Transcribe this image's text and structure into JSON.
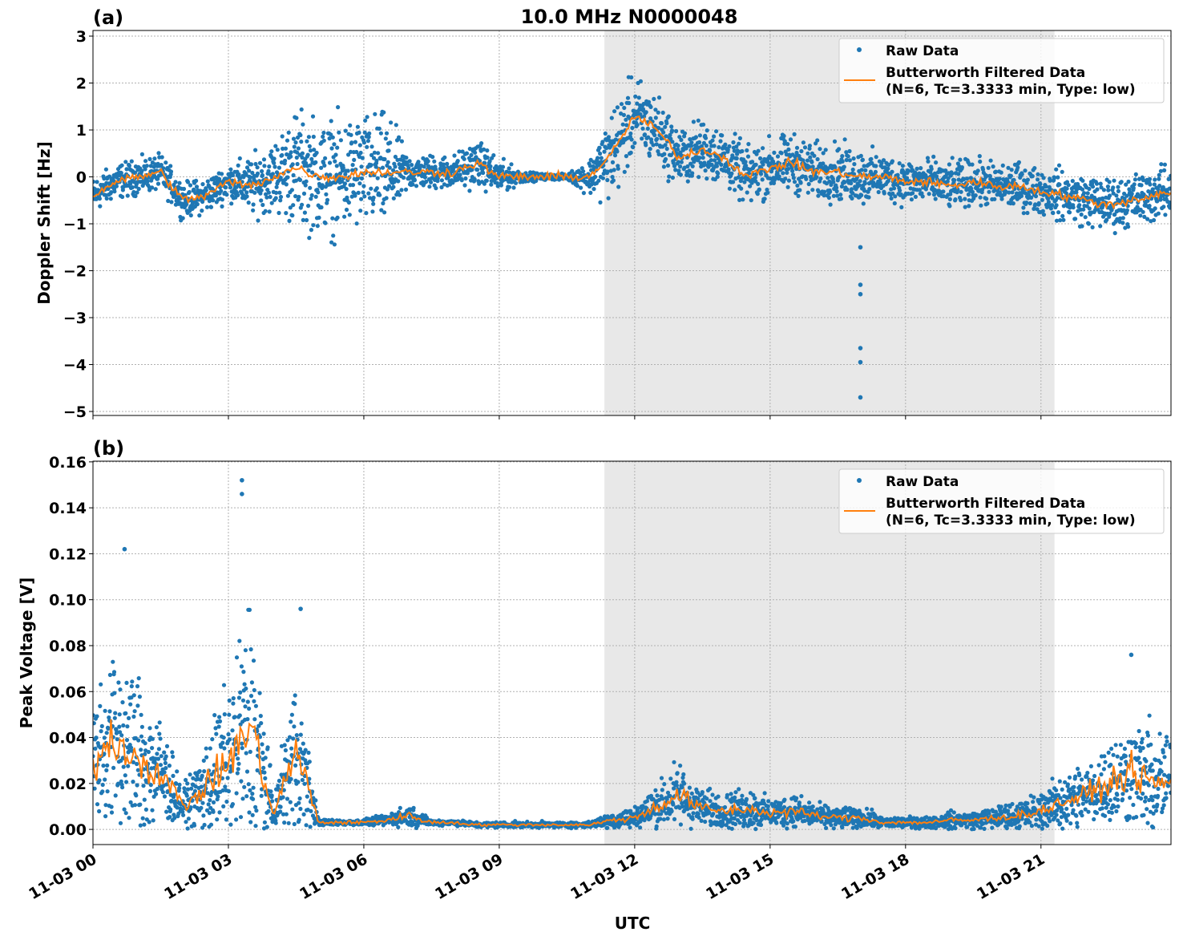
{
  "title": "10.0 MHz N0000048",
  "xlabel": "UTC",
  "colors": {
    "raw": "#1f77b4",
    "filtered": "#ff7f0e",
    "shade": "#e8e8e8",
    "grid": "#b0b0b0"
  },
  "chart_data": [
    {
      "type": "scatter+line",
      "panel_label": "(a)",
      "ylabel": "Doppler Shift [Hz]",
      "xlim_hours": [
        0,
        23.88
      ],
      "ylim": [
        -5.085,
        3.12
      ],
      "yticks": [
        3,
        2,
        1,
        0,
        -1,
        -2,
        -3,
        -4,
        -5
      ],
      "ytick_labels": [
        "3",
        "2",
        "1",
        "0",
        "−1",
        "−2",
        "−3",
        "−4",
        "−5"
      ],
      "grid": true,
      "legend_placement": "top-right",
      "legend": [
        "Raw Data",
        "Butterworth Filtered Data",
        "(N=6, Tc=3.3333 min, Type: low)"
      ],
      "shaded_hours": [
        11.33,
        21.3
      ],
      "x_hours": [
        0,
        0.5,
        1,
        1.5,
        2,
        2.5,
        3,
        3.5,
        4,
        4.5,
        5,
        5.5,
        6,
        6.5,
        7,
        7.5,
        8,
        8.5,
        9,
        9.5,
        10,
        10.5,
        11,
        11.5,
        12,
        12.5,
        13,
        13.5,
        14,
        14.5,
        15,
        15.5,
        16,
        16.5,
        17,
        17.5,
        18,
        18.5,
        19,
        19.5,
        20,
        20.5,
        21,
        21.5,
        22,
        22.5,
        23,
        23.5,
        23.9
      ],
      "filtered": [
        -0.4,
        -0.1,
        0.0,
        0.1,
        -0.5,
        -0.4,
        -0.1,
        -0.2,
        0.0,
        0.2,
        0.0,
        0.0,
        0.1,
        0.1,
        0.1,
        0.1,
        0.1,
        0.3,
        0.0,
        0.0,
        0.0,
        0.0,
        0.0,
        0.5,
        1.3,
        1.0,
        0.4,
        0.6,
        0.4,
        0.0,
        0.2,
        0.3,
        0.1,
        0.1,
        0.0,
        0.0,
        -0.1,
        -0.1,
        -0.2,
        -0.1,
        -0.2,
        -0.2,
        -0.3,
        -0.4,
        -0.5,
        -0.6,
        -0.5,
        -0.4,
        -0.3
      ],
      "raw_spread": [
        0.3,
        0.3,
        0.3,
        0.3,
        0.3,
        0.3,
        0.3,
        0.5,
        0.6,
        1.0,
        1.0,
        1.0,
        1.0,
        1.0,
        0.3,
        0.3,
        0.3,
        0.4,
        0.3,
        0.1,
        0.05,
        0.05,
        0.3,
        0.8,
        0.7,
        0.6,
        0.5,
        0.5,
        0.5,
        0.5,
        0.5,
        0.5,
        0.5,
        0.5,
        0.5,
        0.4,
        0.4,
        0.4,
        0.4,
        0.4,
        0.4,
        0.4,
        0.4,
        0.45,
        0.45,
        0.45,
        0.45,
        0.45,
        0.45
      ],
      "outliers": [
        {
          "x": 17.0,
          "y": -4.7
        },
        {
          "x": 17.0,
          "y": -3.95
        },
        {
          "x": 17.0,
          "y": -3.65
        },
        {
          "x": 17.0,
          "y": -2.5
        },
        {
          "x": 17.0,
          "y": -2.3
        },
        {
          "x": 17.0,
          "y": -1.5
        }
      ]
    },
    {
      "type": "scatter+line",
      "panel_label": "(b)",
      "ylabel": "Peak Voltage [V]",
      "xlim_hours": [
        0,
        23.88
      ],
      "ylim": [
        -0.0066,
        0.1603
      ],
      "yticks": [
        0.16,
        0.14,
        0.12,
        0.1,
        0.08,
        0.06,
        0.04,
        0.02,
        0.0
      ],
      "ytick_labels": [
        "0.16",
        "0.14",
        "0.12",
        "0.10",
        "0.08",
        "0.06",
        "0.04",
        "0.02",
        "0.00"
      ],
      "xticks_hours": [
        0,
        3,
        6,
        9,
        12,
        15,
        18,
        21
      ],
      "xtick_labels": [
        "11-03 00",
        "11-03 03",
        "11-03 06",
        "11-03 09",
        "11-03 12",
        "11-03 15",
        "11-03 18",
        "11-03 21"
      ],
      "grid": true,
      "legend_placement": "top-right",
      "legend": [
        "Raw Data",
        "Butterworth Filtered Data",
        "(N=6, Tc=3.3333 min, Type: low)"
      ],
      "shaded_hours": [
        11.33,
        21.3
      ],
      "x_hours": [
        0,
        0.5,
        1,
        1.5,
        2,
        2.5,
        3,
        3.5,
        4,
        4.5,
        5,
        5.5,
        6,
        6.5,
        7,
        7.5,
        8,
        8.5,
        9,
        9.5,
        10,
        10.5,
        11,
        11.5,
        12,
        12.5,
        13,
        13.5,
        14,
        14.5,
        15,
        15.5,
        16,
        16.5,
        17,
        17.5,
        18,
        18.5,
        19,
        19.5,
        20,
        20.5,
        21,
        21.5,
        22,
        22.5,
        23,
        23.5,
        23.9
      ],
      "filtered": [
        0.03,
        0.04,
        0.03,
        0.025,
        0.01,
        0.018,
        0.03,
        0.045,
        0.006,
        0.035,
        0.003,
        0.003,
        0.003,
        0.004,
        0.006,
        0.003,
        0.003,
        0.002,
        0.002,
        0.002,
        0.002,
        0.002,
        0.002,
        0.004,
        0.005,
        0.01,
        0.015,
        0.009,
        0.008,
        0.009,
        0.007,
        0.008,
        0.006,
        0.005,
        0.005,
        0.003,
        0.003,
        0.003,
        0.004,
        0.004,
        0.005,
        0.006,
        0.008,
        0.012,
        0.015,
        0.02,
        0.025,
        0.02,
        0.02
      ],
      "raw_spread": [
        0.025,
        0.035,
        0.03,
        0.02,
        0.006,
        0.015,
        0.03,
        0.05,
        0.005,
        0.03,
        0.001,
        0.001,
        0.001,
        0.002,
        0.004,
        0.001,
        0.001,
        0.001,
        0.001,
        0.001,
        0.001,
        0.001,
        0.001,
        0.003,
        0.004,
        0.008,
        0.012,
        0.007,
        0.006,
        0.008,
        0.005,
        0.006,
        0.004,
        0.004,
        0.004,
        0.002,
        0.002,
        0.002,
        0.003,
        0.003,
        0.004,
        0.005,
        0.007,
        0.01,
        0.012,
        0.015,
        0.018,
        0.02,
        0.018
      ],
      "outliers": [
        {
          "x": 3.3,
          "y": 0.152
        },
        {
          "x": 3.3,
          "y": 0.146
        },
        {
          "x": 0.7,
          "y": 0.122
        },
        {
          "x": 4.6,
          "y": 0.096
        },
        {
          "x": 23.0,
          "y": 0.076
        }
      ]
    }
  ]
}
